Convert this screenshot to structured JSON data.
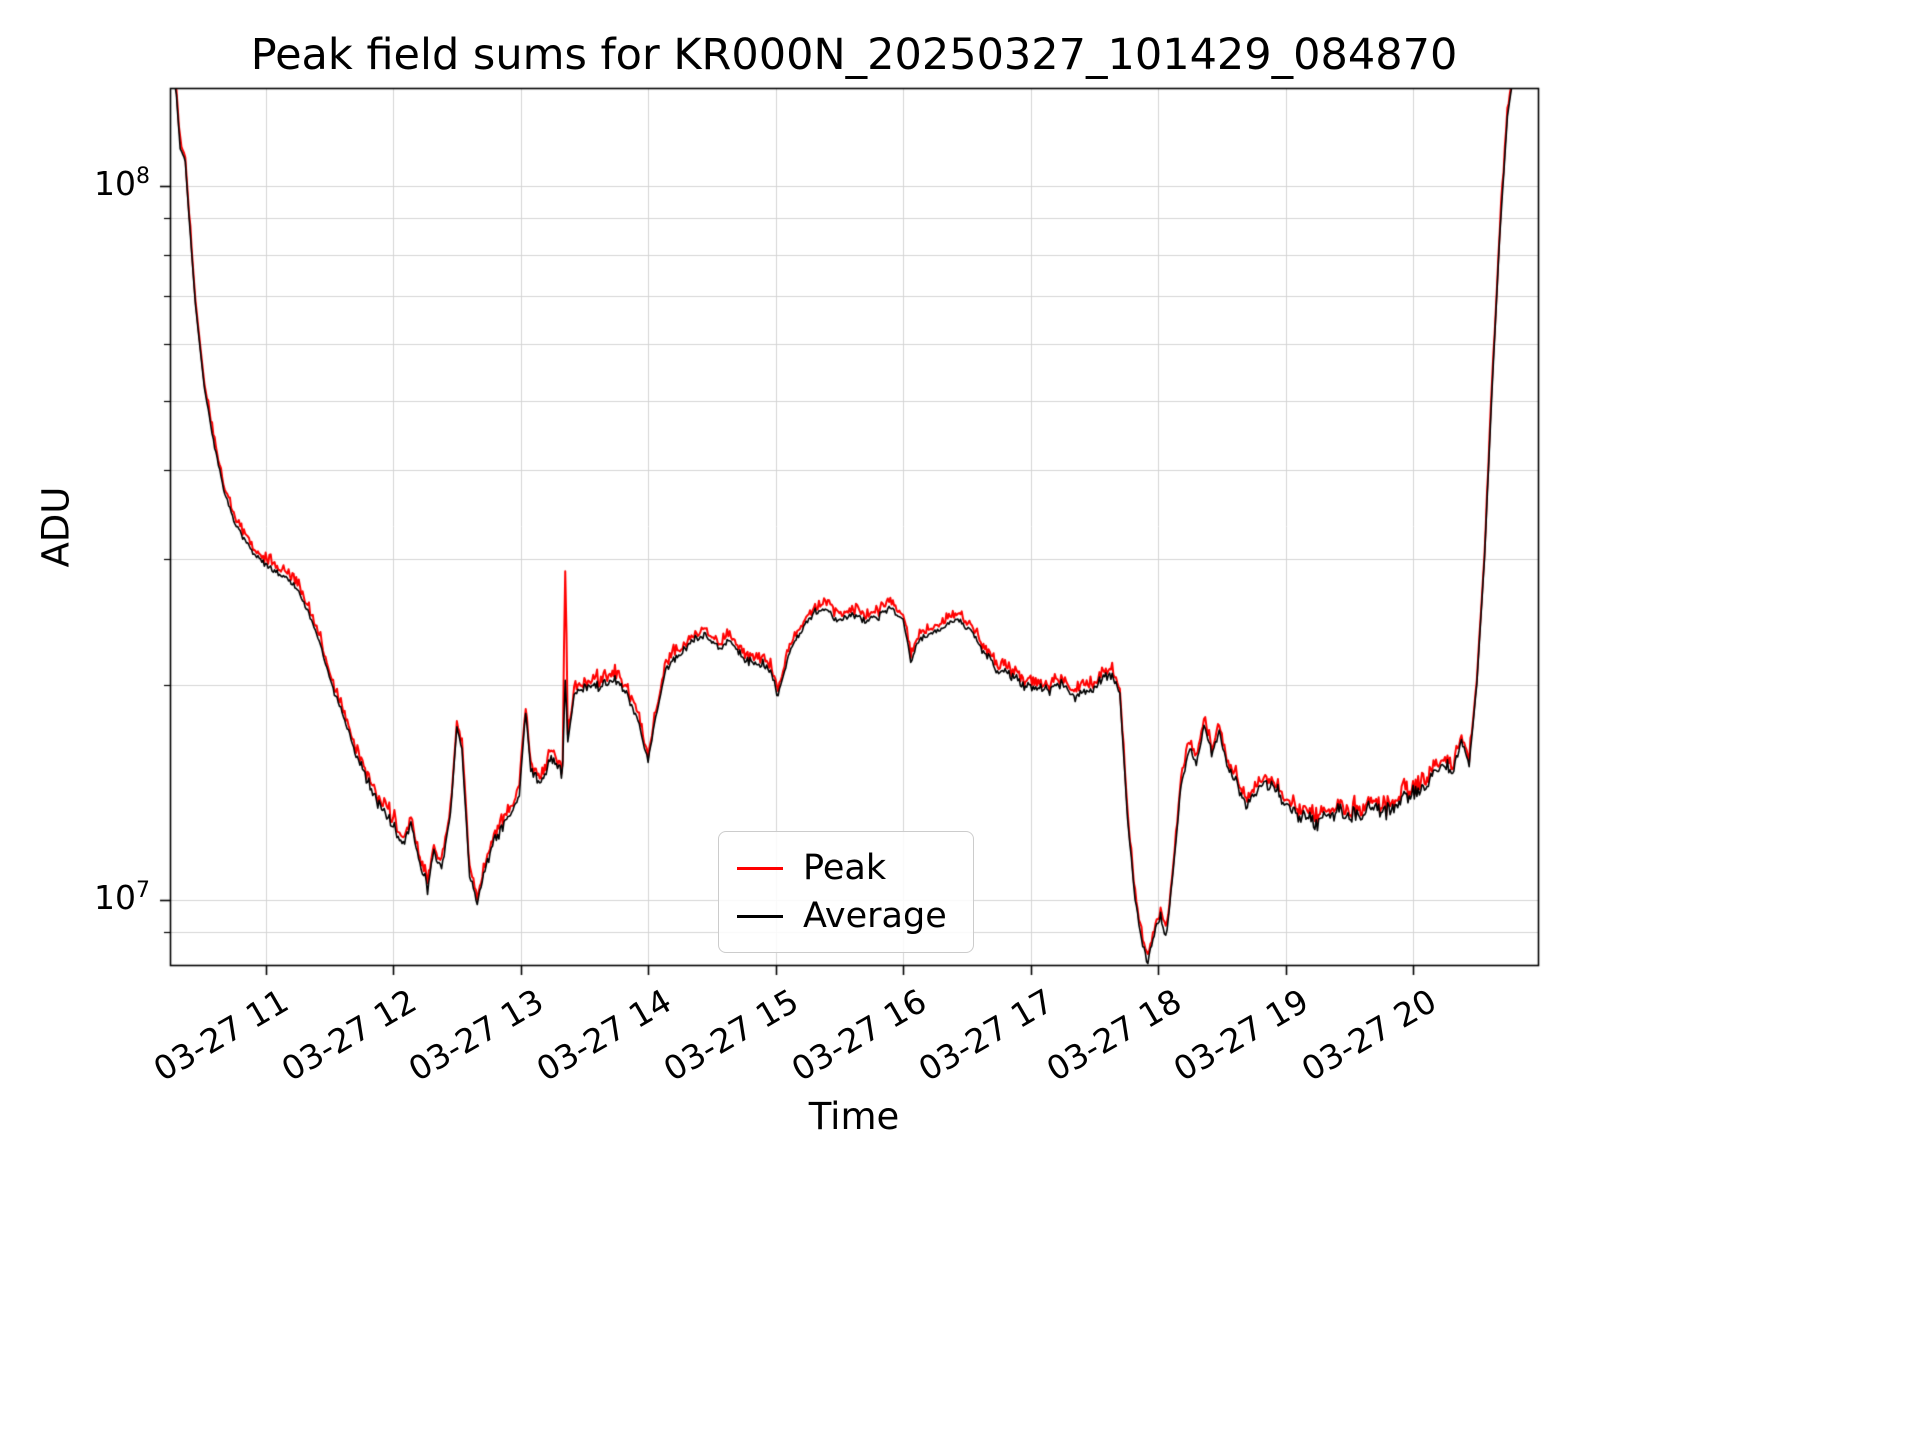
{
  "title": "Peak field sums for KR000N_20250327_101429_084870",
  "axes": {
    "x_label": "Time",
    "y_label": "ADU"
  },
  "legend": {
    "items": [
      {
        "label": "Peak",
        "color": "#ff0000"
      },
      {
        "label": "Average",
        "color": "#000000"
      }
    ]
  },
  "chart_data": {
    "type": "line",
    "title": "Peak field sums for KR000N_20250327_101429_084870",
    "xlabel": "Time",
    "ylabel": "ADU",
    "y_scale": "log",
    "grid": true,
    "minor_grid": true,
    "grid_color": "#d4d4d4",
    "ylim": [
      8100000.0,
      137000000.0
    ],
    "xlim_hours": [
      10.25,
      20.98
    ],
    "x_ticks": [
      {
        "hour": 11,
        "label": "03-27 11"
      },
      {
        "hour": 12,
        "label": "03-27 12"
      },
      {
        "hour": 13,
        "label": "03-27 13"
      },
      {
        "hour": 14,
        "label": "03-27 14"
      },
      {
        "hour": 15,
        "label": "03-27 15"
      },
      {
        "hour": 16,
        "label": "03-27 16"
      },
      {
        "hour": 17,
        "label": "03-27 17"
      },
      {
        "hour": 18,
        "label": "03-27 18"
      },
      {
        "hour": 19,
        "label": "03-27 19"
      },
      {
        "hour": 20,
        "label": "03-27 20"
      }
    ],
    "y_major_ticks": [
      {
        "value": 10000000.0,
        "base": "10",
        "exp": "7"
      },
      {
        "value": 100000000.0,
        "base": "10",
        "exp": "8"
      }
    ],
    "series": [
      {
        "name": "Peak",
        "color": "#ff0000",
        "role": "peak"
      },
      {
        "name": "Average",
        "color": "#000000",
        "role": "average"
      }
    ],
    "peak_spikes": [
      {
        "hour": 13.35,
        "width": 0.02,
        "peak_factor": 1.85,
        "avg_factor": 1.32
      }
    ],
    "keypoints": [
      [
        10.26,
        150000000.0
      ],
      [
        10.3,
        134000000.0
      ],
      [
        10.33,
        113000000.0
      ],
      [
        10.37,
        108000000.0
      ],
      [
        10.4,
        90000000.0
      ],
      [
        10.45,
        68000000.0
      ],
      [
        10.52,
        52000000.0
      ],
      [
        10.6,
        43000000.0
      ],
      [
        10.68,
        37000000.0
      ],
      [
        10.76,
        33500000.0
      ],
      [
        10.85,
        31500000.0
      ],
      [
        10.95,
        30000000.0
      ],
      [
        11.05,
        29000000.0
      ],
      [
        11.15,
        28200000.0
      ],
      [
        11.25,
        27200000.0
      ],
      [
        11.33,
        25500000.0
      ],
      [
        11.42,
        23000000.0
      ],
      [
        11.52,
        20000000.0
      ],
      [
        11.62,
        17800000.0
      ],
      [
        11.72,
        15800000.0
      ],
      [
        11.82,
        14400000.0
      ],
      [
        11.92,
        13300000.0
      ],
      [
        12.0,
        12700000.0
      ],
      [
        12.08,
        12200000.0
      ],
      [
        12.14,
        12800000.0
      ],
      [
        12.2,
        11300000.0
      ],
      [
        12.27,
        10400000.0
      ],
      [
        12.32,
        11700000.0
      ],
      [
        12.38,
        11000000.0
      ],
      [
        12.45,
        13200000.0
      ],
      [
        12.5,
        17500000.0
      ],
      [
        12.54,
        16200000.0
      ],
      [
        12.6,
        10800000.0
      ],
      [
        12.66,
        10000000.0
      ],
      [
        12.72,
        11000000.0
      ],
      [
        12.8,
        12200000.0
      ],
      [
        12.9,
        13000000.0
      ],
      [
        12.99,
        14000000.0
      ],
      [
        13.04,
        18500000.0
      ],
      [
        13.08,
        15200000.0
      ],
      [
        13.16,
        14500000.0
      ],
      [
        13.24,
        15800000.0
      ],
      [
        13.32,
        15200000.0
      ],
      [
        13.35,
        15500000.0
      ],
      [
        13.42,
        19500000.0
      ],
      [
        13.52,
        20000000.0
      ],
      [
        13.62,
        19800000.0
      ],
      [
        13.72,
        20500000.0
      ],
      [
        13.82,
        19500000.0
      ],
      [
        13.92,
        18000000.0
      ],
      [
        14.0,
        15500000.0
      ],
      [
        14.06,
        18000000.0
      ],
      [
        14.14,
        21000000.0
      ],
      [
        14.24,
        22000000.0
      ],
      [
        14.34,
        23000000.0
      ],
      [
        14.44,
        23500000.0
      ],
      [
        14.54,
        22500000.0
      ],
      [
        14.64,
        23000000.0
      ],
      [
        14.74,
        22000000.0
      ],
      [
        14.84,
        21500000.0
      ],
      [
        14.94,
        21200000.0
      ],
      [
        15.02,
        19500000.0
      ],
      [
        15.1,
        22000000.0
      ],
      [
        15.2,
        23800000.0
      ],
      [
        15.3,
        25200000.0
      ],
      [
        15.4,
        25500000.0
      ],
      [
        15.5,
        24500000.0
      ],
      [
        15.6,
        25200000.0
      ],
      [
        15.7,
        24600000.0
      ],
      [
        15.8,
        25000000.0
      ],
      [
        15.9,
        25600000.0
      ],
      [
        16.0,
        24600000.0
      ],
      [
        16.06,
        21800000.0
      ],
      [
        16.14,
        23200000.0
      ],
      [
        16.24,
        23600000.0
      ],
      [
        16.34,
        24200000.0
      ],
      [
        16.44,
        24600000.0
      ],
      [
        16.54,
        23600000.0
      ],
      [
        16.64,
        22200000.0
      ],
      [
        16.74,
        21000000.0
      ],
      [
        16.84,
        20500000.0
      ],
      [
        16.94,
        20000000.0
      ],
      [
        17.04,
        20000000.0
      ],
      [
        17.14,
        19500000.0
      ],
      [
        17.24,
        20000000.0
      ],
      [
        17.34,
        19200000.0
      ],
      [
        17.44,
        19600000.0
      ],
      [
        17.54,
        20200000.0
      ],
      [
        17.64,
        20500000.0
      ],
      [
        17.7,
        19500000.0
      ],
      [
        17.76,
        13000000.0
      ],
      [
        17.82,
        10000000.0
      ],
      [
        17.88,
        8600000.0
      ],
      [
        17.92,
        8300000.0
      ],
      [
        17.97,
        8900000.0
      ],
      [
        18.02,
        9400000.0
      ],
      [
        18.07,
        9000000.0
      ],
      [
        18.12,
        11000000.0
      ],
      [
        18.18,
        14500000.0
      ],
      [
        18.24,
        16200000.0
      ],
      [
        18.3,
        15500000.0
      ],
      [
        18.36,
        17500000.0
      ],
      [
        18.42,
        16000000.0
      ],
      [
        18.48,
        17200000.0
      ],
      [
        18.54,
        15500000.0
      ],
      [
        18.62,
        14500000.0
      ],
      [
        18.7,
        13500000.0
      ],
      [
        18.78,
        14200000.0
      ],
      [
        18.86,
        14700000.0
      ],
      [
        18.94,
        14200000.0
      ],
      [
        19.02,
        13500000.0
      ],
      [
        19.12,
        13000000.0
      ],
      [
        19.22,
        12800000.0
      ],
      [
        19.32,
        13100000.0
      ],
      [
        19.42,
        13300000.0
      ],
      [
        19.52,
        13000000.0
      ],
      [
        19.62,
        13200000.0
      ],
      [
        19.72,
        13500000.0
      ],
      [
        19.82,
        13400000.0
      ],
      [
        19.92,
        13800000.0
      ],
      [
        20.02,
        14000000.0
      ],
      [
        20.12,
        14600000.0
      ],
      [
        20.22,
        15600000.0
      ],
      [
        20.3,
        15000000.0
      ],
      [
        20.38,
        16500000.0
      ],
      [
        20.44,
        15500000.0
      ],
      [
        20.5,
        20000000.0
      ],
      [
        20.56,
        30000000.0
      ],
      [
        20.62,
        52000000.0
      ],
      [
        20.68,
        85000000.0
      ],
      [
        20.74,
        125000000.0
      ],
      [
        20.8,
        148000000.0
      ],
      [
        20.98,
        155000000.0
      ]
    ]
  }
}
